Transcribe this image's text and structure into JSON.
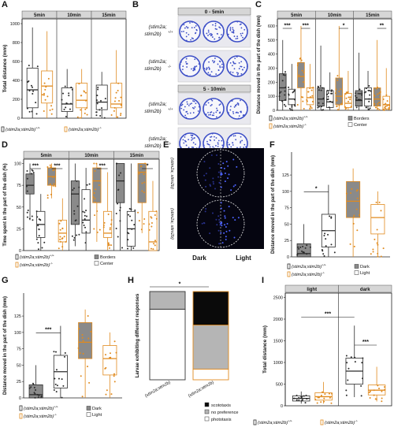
{
  "colors": {
    "wt": "#2b2b2b",
    "mut": "#e08a1e",
    "grey_fill": "#8a8a8a",
    "strip": "#d6d6d6",
    "dish_blue": "#3d4fc7"
  },
  "panel_labels": [
    "A",
    "B",
    "C",
    "D",
    "E",
    "F",
    "G",
    "H",
    "I"
  ],
  "icons": {
    "boxplot_key": "boxplot-legend-glyph",
    "filled_square": "filled-square",
    "empty_square": "empty-square"
  },
  "legend": {
    "wt": "(stim2a;stim2b)",
    "wt_sup": "+/+",
    "mut": "(stim2a;stim2b)",
    "mut_sup": "-/-",
    "borders": "Borders",
    "center": "Center",
    "dark": "Dark",
    "light": "Light",
    "scototaxis": "scototaxis",
    "no_preference": "no preference",
    "phototaxis": "phototaxis"
  },
  "B": {
    "times": [
      "0 - 5min",
      "5 - 10min"
    ],
    "rows": [
      "(stim2a;",
      "stim2b)",
      "+/+",
      "-/-"
    ]
  },
  "E": {
    "dark": "Dark",
    "light": "Light",
    "top_label": "(stim2a; stim2b)",
    "top_sup": "+/+",
    "bottom_label": "(stim2a; stim2b)",
    "bottom_sup": "-/-"
  },
  "H_xlabels": [
    "(stim2a;stim2b)",
    "(stim2a;stim2b)"
  ],
  "H_xsup": [
    "+/+",
    "-/-"
  ],
  "chart_data": [
    {
      "panel": "A",
      "type": "box",
      "ylabel": "Total distance (mm)",
      "facets": [
        "5min",
        "10min",
        "15min"
      ],
      "yticks": [
        0,
        200,
        400,
        600,
        800,
        1000
      ],
      "ylim": [
        0,
        1050
      ],
      "series": [
        {
          "name": "(stim2a;stim2b)+/+",
          "boxes": [
            [
              0,
              110,
              300,
              530,
              960
            ],
            [
              0,
              70,
              150,
              320,
              520
            ],
            [
              0,
              90,
              170,
              350,
              490
            ]
          ]
        },
        {
          "name": "(stim2a;stim2b)-/-",
          "boxes": [
            [
              0,
              160,
              340,
              500,
              920
            ],
            [
              0,
              110,
              190,
              370,
              520
            ],
            [
              0,
              110,
              150,
              370,
              720
            ]
          ]
        }
      ],
      "stars": []
    },
    {
      "panel": "C",
      "type": "box",
      "ylabel": "Distance moved in the part of the dish (mm)",
      "facets": [
        "5min",
        "10min",
        "15min"
      ],
      "yticks": [
        0,
        100,
        200,
        300,
        400,
        500,
        600
      ],
      "ylim": [
        0,
        650
      ],
      "groups": [
        "+/+ Borders",
        "+/+ Center",
        "-/- Borders",
        "-/- Center"
      ],
      "boxes": [
        [
          [
            0,
            70,
            160,
            260,
            500
          ],
          [
            0,
            40,
            80,
            150,
            330
          ],
          [
            0,
            160,
            240,
            340,
            600
          ],
          [
            0,
            40,
            90,
            160,
            330
          ]
        ],
        [
          [
            0,
            30,
            80,
            160,
            460
          ],
          [
            0,
            20,
            60,
            140,
            270
          ],
          [
            0,
            40,
            100,
            230,
            600
          ],
          [
            0,
            20,
            50,
            120,
            280
          ]
        ],
        [
          [
            0,
            30,
            70,
            140,
            410
          ],
          [
            0,
            30,
            80,
            160,
            280
          ],
          [
            0,
            30,
            80,
            160,
            500
          ],
          [
            0,
            10,
            40,
            100,
            300
          ]
        ]
      ],
      "stars": [
        {
          "facet": 0,
          "text": "***"
        },
        {
          "facet": 0,
          "text": "***"
        },
        {
          "facet": 1,
          "text": "*"
        },
        {
          "facet": 2,
          "text": "**"
        }
      ]
    },
    {
      "panel": "D",
      "type": "box",
      "ylabel": "Time spent in the part of the dish (%)",
      "facets": [
        "5min",
        "10min",
        "15min"
      ],
      "yticks": [
        0,
        25,
        50,
        75,
        100
      ],
      "ylim": [
        0,
        105
      ],
      "groups": [
        "+/+ Borders",
        "+/+ Center",
        "-/- Borders",
        "-/- Center"
      ],
      "boxes": [
        [
          [
            35,
            65,
            75,
            88,
            100
          ],
          [
            0,
            15,
            30,
            45,
            65
          ],
          [
            60,
            75,
            85,
            95,
            100
          ],
          [
            0,
            10,
            20,
            35,
            60
          ]
        ],
        [
          [
            5,
            30,
            65,
            80,
            100
          ],
          [
            0,
            20,
            35,
            70,
            95
          ],
          [
            10,
            55,
            80,
            95,
            100
          ],
          [
            0,
            15,
            20,
            45,
            90
          ]
        ],
        [
          [
            0,
            55,
            80,
            100,
            100
          ],
          [
            0,
            5,
            25,
            45,
            100
          ],
          [
            20,
            55,
            90,
            100,
            100
          ],
          [
            0,
            0,
            10,
            45,
            80
          ]
        ]
      ],
      "stars": [
        {
          "facet": 0,
          "text": "***"
        },
        {
          "facet": 0,
          "text": "***"
        },
        {
          "facet": 1,
          "text": "***"
        },
        {
          "facet": 2,
          "text": "*"
        }
      ]
    },
    {
      "panel": "F",
      "type": "box",
      "ylabel": "Distance moved in the part of the dish (mm)",
      "facets": [],
      "yticks": [
        0,
        25,
        50,
        75,
        100,
        125
      ],
      "ylim": [
        0,
        160
      ],
      "groups": [
        "+/+ Dark",
        "+/+ Light",
        "-/- Dark",
        "-/- Light"
      ],
      "boxes": [
        [
          [
            0,
            0,
            5,
            20,
            50
          ],
          [
            0,
            15,
            40,
            65,
            110
          ],
          [
            0,
            60,
            85,
            115,
            135
          ],
          [
            0,
            35,
            60,
            80,
            100
          ]
        ]
      ],
      "stars": [
        {
          "facet": 0,
          "text": "*"
        }
      ]
    },
    {
      "panel": "G",
      "type": "box",
      "ylabel": "Distance moved in the part of the dish (mm)",
      "facets": [],
      "yticks": [
        0,
        25,
        50,
        75,
        100,
        125
      ],
      "ylim": [
        0,
        160
      ],
      "groups": [
        "+/+ Dark",
        "+/+ Light",
        "-/- Dark",
        "-/- Light"
      ],
      "boxes": [
        [
          [
            0,
            0,
            5,
            20,
            50
          ],
          [
            0,
            15,
            40,
            65,
            110
          ],
          [
            0,
            60,
            85,
            115,
            135
          ],
          [
            0,
            35,
            60,
            80,
            100
          ]
        ]
      ],
      "stars": [
        {
          "facet": 0,
          "text": "***"
        }
      ]
    },
    {
      "panel": "H",
      "type": "bar",
      "ylabel": "Larvae exhibiting different responses",
      "stacked": true,
      "categories": [
        "(stim2a;stim2b)+/+",
        "(stim2a;stim2b)-/-"
      ],
      "series": [
        {
          "name": "phototaxis",
          "values": [
            0.8,
            0.12
          ]
        },
        {
          "name": "no preference",
          "values": [
            0.2,
            0.5
          ]
        },
        {
          "name": "scototaxis",
          "values": [
            0.0,
            0.38
          ]
        }
      ],
      "stars": [
        {
          "text": "*"
        }
      ]
    },
    {
      "panel": "I",
      "type": "box",
      "ylabel": "Total distance (mm)",
      "facets": [
        "light",
        "dark"
      ],
      "yticks": [
        0,
        500,
        1000,
        1500,
        2000,
        2500
      ],
      "ylim": [
        0,
        2600
      ],
      "series": [
        {
          "name": "(stim2a;stim2b)+/+",
          "boxes": [
            [
              50,
              110,
              170,
              230,
              330
            ],
            [
              200,
              500,
              800,
              1100,
              1850
            ]
          ]
        },
        {
          "name": "(stim2a;stim2b)-/-",
          "boxes": [
            [
              50,
              130,
              210,
              300,
              550
            ],
            [
              100,
              250,
              360,
              480,
              900
            ]
          ]
        }
      ],
      "stars": [
        {
          "text": "***"
        },
        {
          "text": "***"
        }
      ]
    }
  ]
}
